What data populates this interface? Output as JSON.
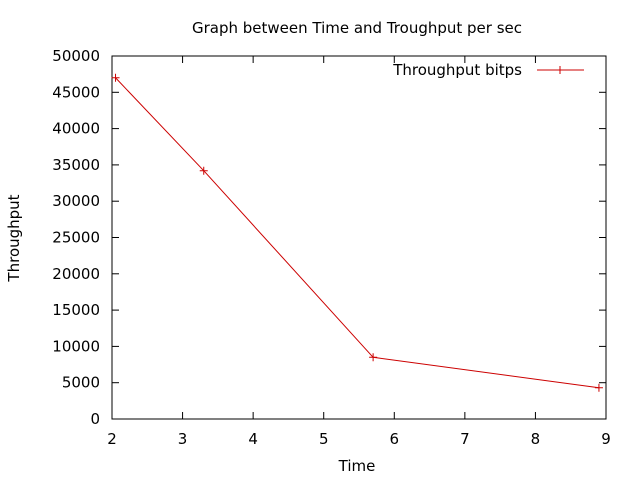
{
  "chart_data": {
    "type": "line",
    "title": "Graph between Time and Troughput per sec",
    "xlabel": "Time",
    "ylabel": "Throughput",
    "xlim": [
      2,
      9
    ],
    "ylim": [
      0,
      50000
    ],
    "x_ticks": [
      2,
      3,
      4,
      5,
      6,
      7,
      8,
      9
    ],
    "y_ticks": [
      0,
      5000,
      10000,
      15000,
      20000,
      25000,
      30000,
      35000,
      40000,
      45000,
      50000
    ],
    "grid": false,
    "legend_position": "top-right",
    "series": [
      {
        "name": "Throughput bitps",
        "color": "#cc0000",
        "marker": "plus",
        "x": [
          2.05,
          3.3,
          5.7,
          8.9
        ],
        "y": [
          47000,
          34200,
          8500,
          4300
        ]
      }
    ]
  }
}
